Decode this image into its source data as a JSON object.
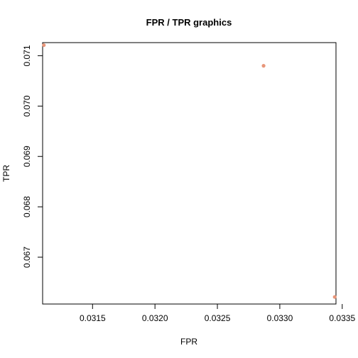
{
  "chart_data": {
    "type": "scatter",
    "title": "FPR / TPR graphics",
    "xlabel": "FPR",
    "ylabel": "TPR",
    "xlim": [
      0.0311,
      0.03345
    ],
    "ylim": [
      0.06607,
      0.07126
    ],
    "x_ticks": [
      0.0315,
      0.032,
      0.0325,
      0.033,
      0.0335
    ],
    "x_tick_labels": [
      "0.0315",
      "0.0320",
      "0.0325",
      "0.0330",
      "0.0335"
    ],
    "y_ticks": [
      0.067,
      0.068,
      0.069,
      0.07,
      0.071
    ],
    "y_tick_labels": [
      "0.067",
      "0.068",
      "0.069",
      "0.070",
      "0.071"
    ],
    "grid": false,
    "point_color": "#e8967a",
    "points": [
      {
        "x": 0.03111,
        "y": 0.07121
      },
      {
        "x": 0.03287,
        "y": 0.0708
      },
      {
        "x": 0.03344,
        "y": 0.06621
      }
    ]
  }
}
